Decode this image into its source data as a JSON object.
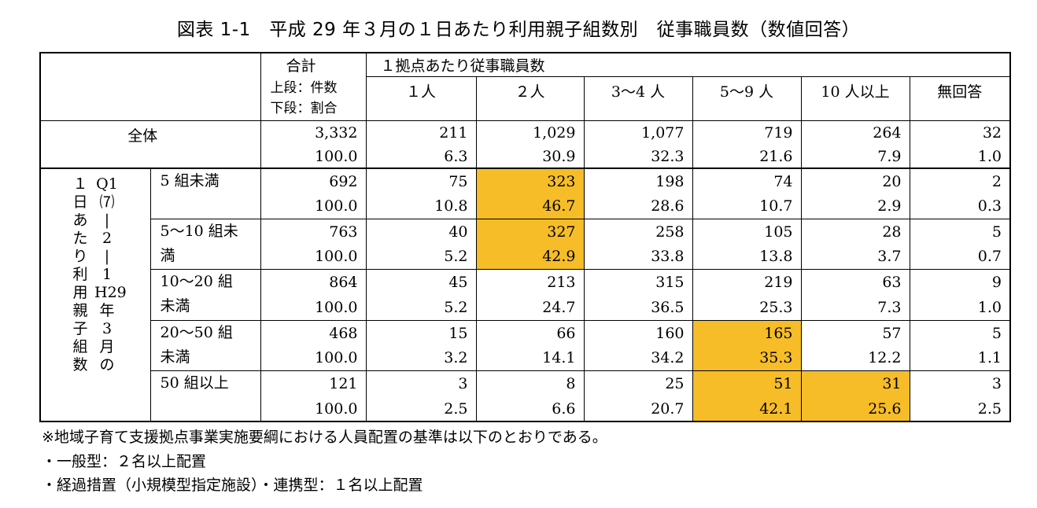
{
  "title": "図表 1-1　平成 29 年３月の１日あたり利用親子組数別　従事職員数（数値回答）",
  "header": {
    "total_label": "合計",
    "total_sub_1": "上段：件数",
    "total_sub_2": "下段：割合",
    "group_label": "１拠点あたり従事職員数",
    "columns": [
      "１人",
      "２人",
      "3～4 人",
      "5～9 人",
      "10 人以上",
      "無回答"
    ]
  },
  "overall": {
    "label": "全体",
    "count": [
      "3,332",
      "211",
      "1,029",
      "1,077",
      "719",
      "264",
      "32"
    ],
    "pct": [
      "100.0",
      "6.3",
      "30.9",
      "32.3",
      "21.6",
      "7.9",
      "1.0"
    ]
  },
  "side_label": {
    "col1": [
      "１",
      "日",
      "あ",
      "た",
      "り",
      "利",
      "用",
      "親",
      "子",
      "組",
      "数"
    ],
    "col2": [
      "Q1",
      "⑺",
      "|",
      "2",
      "|",
      "1",
      "",
      "H29",
      "年",
      "3",
      "月",
      "の"
    ]
  },
  "rows": [
    {
      "label_1": "5 組未満",
      "label_2": "",
      "count": [
        "692",
        "75",
        "323",
        "198",
        "74",
        "20",
        "2"
      ],
      "pct": [
        "100.0",
        "10.8",
        "46.7",
        "28.6",
        "10.7",
        "2.9",
        "0.3"
      ],
      "highlight": [
        false,
        false,
        true,
        false,
        false,
        false,
        false
      ]
    },
    {
      "label_1": "5～10 組未",
      "label_2": "満",
      "count": [
        "763",
        "40",
        "327",
        "258",
        "105",
        "28",
        "5"
      ],
      "pct": [
        "100.0",
        "5.2",
        "42.9",
        "33.8",
        "13.8",
        "3.7",
        "0.7"
      ],
      "highlight": [
        false,
        false,
        true,
        false,
        false,
        false,
        false
      ]
    },
    {
      "label_1": "10～20 組",
      "label_2": "未満",
      "count": [
        "864",
        "45",
        "213",
        "315",
        "219",
        "63",
        "9"
      ],
      "pct": [
        "100.0",
        "5.2",
        "24.7",
        "36.5",
        "25.3",
        "7.3",
        "1.0"
      ],
      "highlight": [
        false,
        false,
        false,
        false,
        false,
        false,
        false
      ]
    },
    {
      "label_1": "20～50 組",
      "label_2": "未満",
      "count": [
        "468",
        "15",
        "66",
        "160",
        "165",
        "57",
        "5"
      ],
      "pct": [
        "100.0",
        "3.2",
        "14.1",
        "34.2",
        "35.3",
        "12.2",
        "1.1"
      ],
      "highlight": [
        false,
        false,
        false,
        false,
        true,
        false,
        false
      ]
    },
    {
      "label_1": "50 組以上",
      "label_2": "",
      "count": [
        "121",
        "3",
        "8",
        "25",
        "51",
        "31",
        "3"
      ],
      "pct": [
        "100.0",
        "2.5",
        "6.6",
        "20.7",
        "42.1",
        "25.6",
        "2.5"
      ],
      "highlight": [
        false,
        false,
        false,
        false,
        true,
        true,
        false
      ]
    }
  ],
  "colors": {
    "highlight": "#f6bd28"
  },
  "notes": [
    "※地域子育て支援拠点事業実施要綱における人員配置の基準は以下のとおりである。",
    "・一般型：２名以上配置",
    "・経過措置（小規模型指定施設）・連携型：１名以上配置"
  ]
}
